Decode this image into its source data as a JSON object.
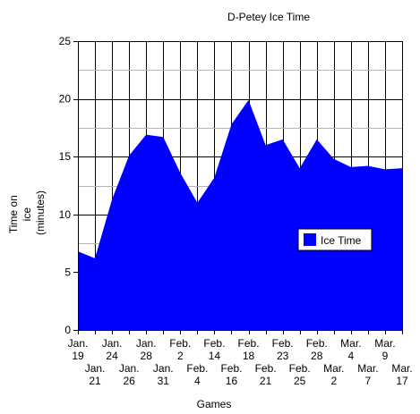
{
  "chart_data": {
    "type": "area",
    "title": "D-Petey Ice Time",
    "xlabel": "Games",
    "ylabel_lines": [
      "Time on",
      "ice",
      "(minutes)"
    ],
    "ylim": [
      0,
      25
    ],
    "yticks": [
      0,
      5,
      10,
      15,
      20,
      25
    ],
    "minor_gridlines": [
      2.5,
      7.5,
      12.5,
      17.5,
      22.5
    ],
    "grid": true,
    "legend_position": "right",
    "categories": [
      "Jan. 19",
      "Jan. 21",
      "Jan. 24",
      "Jan. 26",
      "Jan. 28",
      "Jan. 31",
      "Feb. 2",
      "Feb. 4",
      "Feb. 14",
      "Feb. 16",
      "Feb. 18",
      "Feb. 21",
      "Feb. 23",
      "Feb. 25",
      "Feb. 28",
      "Mar. 2",
      "Mar. 4",
      "Mar. 7",
      "Mar. 9",
      "Mar. 17"
    ],
    "series": [
      {
        "name": "Ice Time",
        "color": "#0000ff",
        "values": [
          6.8,
          6.2,
          11.3,
          15.1,
          16.9,
          16.7,
          13.6,
          11.0,
          13.2,
          17.8,
          19.9,
          16.0,
          16.5,
          14.0,
          16.5,
          14.8,
          14.1,
          14.2,
          13.9,
          14.0
        ]
      }
    ]
  }
}
